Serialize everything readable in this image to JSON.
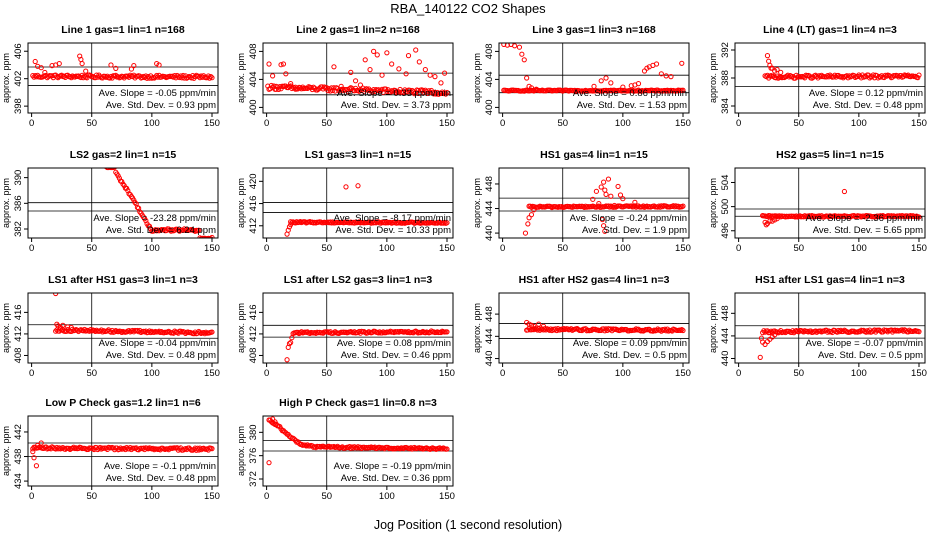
{
  "title": "RBA_140122  CO2 Shapes",
  "xlabel": "Jog Position (1 second resolution)",
  "colors": {
    "points": "#ff0000",
    "axes": "#000000"
  },
  "chart_data": [
    {
      "type": "scatter",
      "title": "Line 1 gas=1 lin=1 n=168",
      "ylabel": "approx. ppm",
      "xlim": [
        -3,
        155
      ],
      "ylim": [
        397,
        407.2
      ],
      "yticks": [
        398,
        402,
        406
      ],
      "xticks": [
        0,
        50,
        100,
        150
      ],
      "hlines": [
        403.7,
        401.0
      ],
      "vline": 50,
      "slope_text": "Ave. Slope = -0.05 ppm/min",
      "sd_text": "Ave. Std. Dev. = 0.93 ppm",
      "start": 1,
      "end": 150,
      "base": 402.3,
      "trend": -0.05,
      "noise": 0.22,
      "outliers": [
        [
          3,
          404.5
        ],
        [
          5,
          403.8
        ],
        [
          8,
          403.6
        ],
        [
          11,
          402.9
        ],
        [
          17,
          403.9
        ],
        [
          20,
          404.0
        ],
        [
          23,
          404.2
        ],
        [
          40,
          405.3
        ],
        [
          41,
          404.8
        ],
        [
          42,
          404.2
        ],
        [
          45,
          403.1
        ],
        [
          66,
          404.0
        ],
        [
          70,
          403.5
        ],
        [
          83,
          403.4
        ],
        [
          85,
          403.9
        ],
        [
          104,
          404.2
        ],
        [
          106,
          404.0
        ]
      ]
    },
    {
      "type": "scatter",
      "title": "Line 2 gas=1 lin=2 n=168",
      "ylabel": "approx. ppm",
      "xlim": [
        -3,
        155
      ],
      "ylim": [
        399.2,
        409.2
      ],
      "yticks": [
        400,
        404,
        408
      ],
      "xticks": [
        0,
        50,
        100,
        150
      ],
      "hlines": [
        404.9,
        401.8
      ],
      "vline": 50,
      "slope_text": "Ave. Slope = 0.33 ppm/min",
      "sd_text": "Ave. Std. Dev. = 3.73 ppm",
      "start": 1,
      "end": 150,
      "base": 402.5,
      "trend": -0.4,
      "noise": 0.3,
      "outliers": [
        [
          2,
          406.2
        ],
        [
          5,
          404.5
        ],
        [
          8,
          403.0
        ],
        [
          12,
          406.1
        ],
        [
          14,
          406.2
        ],
        [
          16,
          404.8
        ],
        [
          20,
          403.4
        ],
        [
          24,
          402.6
        ],
        [
          56,
          405.8
        ],
        [
          62,
          403.0
        ],
        [
          70,
          405.0
        ],
        [
          74,
          403.8
        ],
        [
          78,
          403.2
        ],
        [
          82,
          406.8
        ],
        [
          86,
          405.4
        ],
        [
          89,
          408.0
        ],
        [
          92,
          407.5
        ],
        [
          96,
          404.6
        ],
        [
          100,
          407.8
        ],
        [
          104,
          406.2
        ],
        [
          110,
          405.5
        ],
        [
          116,
          404.8
        ],
        [
          118,
          407.4
        ],
        [
          124,
          408.2
        ],
        [
          127,
          406.5
        ],
        [
          132,
          405.4
        ],
        [
          136,
          404.6
        ],
        [
          140,
          404.4
        ],
        [
          145,
          403.5
        ],
        [
          148,
          404.9
        ]
      ]
    },
    {
      "type": "scatter",
      "title": "Line 3 gas=1 lin=3 n=168",
      "ylabel": "approx. ppm",
      "xlim": [
        -3,
        155
      ],
      "ylim": [
        399.2,
        409.2
      ],
      "yticks": [
        400,
        404,
        408
      ],
      "xticks": [
        0,
        50,
        100,
        150
      ],
      "hlines": [
        404.6,
        402.1
      ],
      "vline": 50,
      "slope_text": "Ave. Slope = 0.86 ppm/min",
      "sd_text": "Ave. Std. Dev. = 1.53 ppm",
      "start": 1,
      "end": 150,
      "base": 402.4,
      "trend": 0,
      "noise": 0.08,
      "outliers": [
        [
          1,
          409.0
        ],
        [
          4,
          408.9
        ],
        [
          7,
          409.0
        ],
        [
          10,
          408.8
        ],
        [
          14,
          408.6
        ],
        [
          16,
          407.6
        ],
        [
          18,
          406.8
        ],
        [
          20,
          404.2
        ],
        [
          22,
          403.0
        ],
        [
          24,
          402.8
        ],
        [
          28,
          402.6
        ],
        [
          76,
          403.0
        ],
        [
          82,
          403.8
        ],
        [
          86,
          404.2
        ],
        [
          90,
          403.5
        ],
        [
          100,
          402.9
        ],
        [
          107,
          403.1
        ],
        [
          110,
          403.2
        ],
        [
          113,
          403.4
        ],
        [
          118,
          405.2
        ],
        [
          120,
          405.6
        ],
        [
          122,
          405.8
        ],
        [
          125,
          406.0
        ],
        [
          128,
          406.2
        ],
        [
          132,
          404.8
        ],
        [
          136,
          404.5
        ],
        [
          140,
          404.4
        ],
        [
          149,
          406.3
        ]
      ]
    },
    {
      "type": "scatter",
      "title": "Line 4 (LT) gas=1 lin=4 n=3",
      "ylabel": "approx. ppm",
      "xlim": [
        -3,
        155
      ],
      "ylim": [
        383,
        393
      ],
      "yticks": [
        384,
        388,
        392
      ],
      "xticks": [
        0,
        50,
        100,
        150
      ],
      "hlines": [
        389.6,
        386.8
      ],
      "vline": 50,
      "slope_text": "Ave. Slope = 0.12 ppm/min",
      "sd_text": "Ave. Std. Dev. = 0.48 ppm",
      "start": 22,
      "end": 150,
      "base": 388.2,
      "trend": 0.05,
      "noise": 0.22,
      "outliers": [
        [
          24,
          391.2
        ],
        [
          25,
          390.4
        ],
        [
          26,
          389.8
        ],
        [
          27,
          389.4
        ],
        [
          28,
          389.4
        ],
        [
          30,
          389.0
        ],
        [
          32,
          389.2
        ],
        [
          35,
          388.8
        ]
      ]
    },
    {
      "type": "scatter",
      "title": "LS2 gas=2 lin=1 n=15",
      "ylabel": "approx. ppm",
      "xlim": [
        -3,
        155
      ],
      "ylim": [
        380.6,
        391.5
      ],
      "yticks": [
        382,
        386,
        390
      ],
      "xticks": [
        0,
        50,
        100,
        150
      ],
      "hlines": [
        386.1,
        384.8
      ],
      "vline": 50,
      "slope_text": "Ave. Slope = -23.28 ppm/min",
      "sd_text": "Ave. Std. Dev. = 6.24 ppm",
      "start": 62,
      "end": 150,
      "shape": "ls2",
      "noise": 0.15,
      "outliers": []
    },
    {
      "type": "scatter",
      "title": "LS1 gas=3 lin=1 n=15",
      "ylabel": "approx. ppm",
      "xlim": [
        -3,
        155
      ],
      "ylim": [
        409.8,
        422.4
      ],
      "yticks": [
        412,
        416,
        420
      ],
      "xticks": [
        0,
        50,
        100,
        150
      ],
      "hlines": [
        416.2,
        414.4
      ],
      "vline": 50,
      "slope_text": "Ave. Slope = -8.17 ppm/min",
      "sd_text": "Ave. Std. Dev. = 10.33 ppm",
      "start": 20,
      "end": 150,
      "base": 412.6,
      "trend": -0.05,
      "noise": 0.12,
      "outliers": [
        [
          17,
          410.5
        ],
        [
          18,
          411.2
        ],
        [
          19,
          411.8
        ],
        [
          20,
          412.2
        ],
        [
          66,
          419.0
        ],
        [
          76,
          419.2
        ]
      ]
    },
    {
      "type": "scatter",
      "title": "HS1 gas=4 lin=1 n=15",
      "ylabel": "approx. ppm",
      "xlim": [
        -3,
        155
      ],
      "ylim": [
        439.2,
        450.6
      ],
      "yticks": [
        440,
        444,
        448
      ],
      "xticks": [
        0,
        50,
        100,
        150
      ],
      "hlines": [
        445.7,
        443.6
      ],
      "vline": 50,
      "slope_text": "Ave. Slope = -0.24 ppm/min",
      "sd_text": "Ave. Std. Dev. = 1.9 ppm",
      "start": 22,
      "end": 150,
      "base": 444.3,
      "trend": 0.05,
      "noise": 0.12,
      "outliers": [
        [
          19,
          440.0
        ],
        [
          21,
          441.5
        ],
        [
          22,
          442.5
        ],
        [
          24,
          443.0
        ],
        [
          26,
          443.8
        ],
        [
          75,
          445.5
        ],
        [
          78,
          446.8
        ],
        [
          80,
          444.8
        ],
        [
          82,
          447.5
        ],
        [
          84,
          448.3
        ],
        [
          85,
          447.0
        ],
        [
          86,
          446.3
        ],
        [
          88,
          448.8
        ],
        [
          90,
          446.0
        ],
        [
          93,
          444.5
        ],
        [
          96,
          447.6
        ],
        [
          98,
          446.2
        ],
        [
          100,
          445.6
        ],
        [
          83,
          442.2
        ],
        [
          84,
          441.2
        ],
        [
          85,
          440.3
        ],
        [
          110,
          445.0
        ]
      ]
    },
    {
      "type": "scatter",
      "title": "HS2 gas=5 lin=1 n=15",
      "ylabel": "approx. ppm",
      "xlim": [
        -3,
        155
      ],
      "ylim": [
        494.8,
        506.4
      ],
      "yticks": [
        496,
        500,
        504
      ],
      "xticks": [
        0,
        50,
        100,
        150
      ],
      "hlines": [
        499.6,
        498.4
      ],
      "vline": 50,
      "slope_text": "Ave. Slope = -2.36 ppm/min",
      "sd_text": "Ave. Std. Dev. = 5.65 ppm",
      "start": 20,
      "end": 150,
      "base": 498.4,
      "trend": 0,
      "noise": 0.12,
      "outliers": [
        [
          20,
          498.5
        ],
        [
          22,
          497.4
        ],
        [
          23,
          497.0
        ],
        [
          24,
          497.2
        ],
        [
          26,
          497.6
        ],
        [
          28,
          497.6
        ],
        [
          30,
          497.8
        ],
        [
          32,
          498.0
        ],
        [
          88,
          502.5
        ]
      ]
    },
    {
      "type": "scatter",
      "title": "LS1 after HS1 gas=3 lin=1 n=3",
      "ylabel": "approx. ppm",
      "xlim": [
        -3,
        155
      ],
      "ylim": [
        406.6,
        419.6
      ],
      "yticks": [
        408,
        412,
        416
      ],
      "xticks": [
        0,
        50,
        100,
        150
      ],
      "hlines": [
        413.7,
        411.2
      ],
      "vline": 50,
      "slope_text": "Ave. Slope = -0.04 ppm/min",
      "sd_text": "Ave. Std. Dev. = 0.48 ppm",
      "start": 20,
      "end": 150,
      "base": 412.5,
      "trend": -0.3,
      "noise": 0.22,
      "outliers": [
        [
          20,
          419.5
        ],
        [
          21,
          413.8
        ],
        [
          22,
          413.5
        ],
        [
          24,
          413.2
        ],
        [
          26,
          413.6
        ],
        [
          30,
          413.3
        ],
        [
          33,
          413.2
        ]
      ]
    },
    {
      "type": "scatter",
      "title": "LS1 after LS2 gas=3 lin=1 n=3",
      "ylabel": "approx. ppm",
      "xlim": [
        -3,
        155
      ],
      "ylim": [
        406.6,
        419.6
      ],
      "yticks": [
        408,
        412,
        416
      ],
      "xticks": [
        0,
        50,
        100,
        150
      ],
      "hlines": [
        413.6,
        411.4
      ],
      "vline": 50,
      "slope_text": "Ave. Slope = 0.08 ppm/min",
      "sd_text": "Ave. Std. Dev. = 0.46 ppm",
      "start": 22,
      "end": 150,
      "base": 412.3,
      "trend": 0.1,
      "noise": 0.18,
      "outliers": [
        [
          17,
          407.2
        ],
        [
          18,
          409.5
        ],
        [
          19,
          410.2
        ],
        [
          20,
          410.4
        ],
        [
          21,
          411.3
        ]
      ]
    },
    {
      "type": "scatter",
      "title": "HS1 after HS2 gas=4 lin=1 n=3",
      "ylabel": "approx. ppm",
      "xlim": [
        -3,
        155
      ],
      "ylim": [
        439.2,
        451.8
      ],
      "yticks": [
        440,
        444,
        448
      ],
      "xticks": [
        0,
        50,
        100,
        150
      ],
      "hlines": [
        446.3,
        443.6
      ],
      "vline": 50,
      "slope_text": "Ave. Slope = 0.09 ppm/min",
      "sd_text": "Ave. Std. Dev. = 0.5 ppm",
      "start": 20,
      "end": 150,
      "base": 445.2,
      "trend": -0.1,
      "noise": 0.2,
      "outliers": [
        [
          20,
          446.5
        ],
        [
          22,
          446.2
        ],
        [
          24,
          446.0
        ],
        [
          26,
          445.8
        ],
        [
          30,
          446.2
        ],
        [
          34,
          445.8
        ]
      ]
    },
    {
      "type": "scatter",
      "title": "HS1 after LS1 gas=4 lin=1 n=3",
      "ylabel": "approx. ppm",
      "xlim": [
        -3,
        155
      ],
      "ylim": [
        439.2,
        451.6
      ],
      "yticks": [
        440,
        444,
        448
      ],
      "xticks": [
        0,
        50,
        100,
        150
      ],
      "hlines": [
        445.8,
        443.6
      ],
      "vline": 50,
      "slope_text": "Ave. Slope = -0.07 ppm/min",
      "sd_text": "Ave. Std. Dev. = 0.5 ppm",
      "start": 20,
      "end": 150,
      "base": 444.8,
      "trend": 0.1,
      "noise": 0.2,
      "outliers": [
        [
          18,
          440.2
        ],
        [
          19,
          443.6
        ],
        [
          20,
          442.9
        ],
        [
          22,
          442.5
        ],
        [
          24,
          443.0
        ],
        [
          26,
          443.4
        ],
        [
          28,
          443.8
        ],
        [
          30,
          444.2
        ]
      ]
    },
    {
      "type": "scatter",
      "title": "Low P Check gas=1.2 lin=1 n=6",
      "ylabel": "approx. ppm",
      "xlim": [
        -3,
        155
      ],
      "ylim": [
        433.2,
        444.6
      ],
      "yticks": [
        434,
        438,
        442
      ],
      "xticks": [
        0,
        50,
        100,
        150
      ],
      "hlines": [
        440.2,
        438.0
      ],
      "vline": 50,
      "slope_text": "Ave. Slope = -0.1 ppm/min",
      "sd_text": "Ave. Std. Dev. = 0.48 ppm",
      "start": 1,
      "end": 150,
      "base": 439.3,
      "trend": -0.1,
      "noise": 0.2,
      "outliers": [
        [
          1,
          438.8
        ],
        [
          2,
          437.8
        ],
        [
          4,
          436.5
        ],
        [
          5,
          439.8
        ],
        [
          8,
          440.2
        ]
      ]
    },
    {
      "type": "scatter",
      "title": "High P Check gas=1 lin=0.8 n=3",
      "ylabel": "approx. ppm",
      "xlim": [
        -3,
        155
      ],
      "ylim": [
        370.8,
        382.8
      ],
      "yticks": [
        372,
        376,
        380
      ],
      "xticks": [
        0,
        50,
        100,
        150
      ],
      "hlines": [
        378.6,
        376.8
      ],
      "vline": 50,
      "slope_text": "Ave. Slope = -0.19 ppm/min",
      "sd_text": "Ave. Std. Dev. = 0.36 ppm",
      "start": 2,
      "end": 150,
      "shape": "hp",
      "noise": 0.15,
      "outliers": [
        [
          2,
          374.8
        ],
        [
          5,
          382.3
        ],
        [
          7,
          381.8
        ]
      ]
    }
  ]
}
